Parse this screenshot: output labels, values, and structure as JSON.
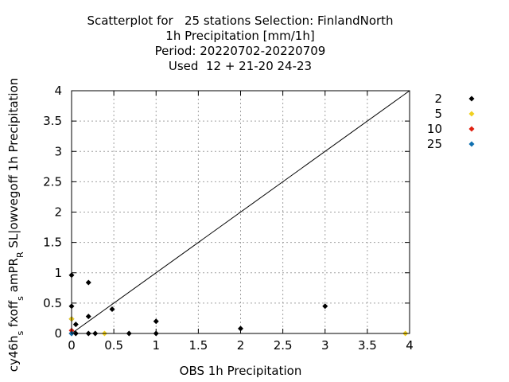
{
  "chart_data": {
    "type": "scatter",
    "title": [
      "Scatterplot for   25 stations Selection: FinlandNorth",
      "1h Precipitation [mm/1h]",
      "Period: 20220702-20220709",
      "Used  12 + 21-20 24-23"
    ],
    "xlabel": "OBS 1h Precipitation",
    "ylabel": "cy46h_s fxoff_s amPR_R SL|owvegoff 1h Precipitation",
    "xlim": [
      0,
      4
    ],
    "ylim": [
      0,
      4
    ],
    "x_ticks": [
      "0",
      "0.5",
      "1",
      "1.5",
      "2",
      "2.5",
      "3",
      "3.5",
      "4"
    ],
    "y_ticks": [
      "0",
      "0.5",
      "1",
      "1.5",
      "2",
      "2.5",
      "3",
      "3.5",
      "4"
    ],
    "grid": true,
    "diagonal": true,
    "legend_position": "outside-right",
    "series": [
      {
        "name": "2",
        "color": "#000000",
        "points": [
          [
            0.0,
            0.96
          ],
          [
            0.0,
            0.45
          ],
          [
            0.0,
            0.24
          ],
          [
            0.0,
            0.0
          ],
          [
            0.05,
            0.15
          ],
          [
            0.05,
            0.0
          ],
          [
            0.2,
            0.84
          ],
          [
            0.2,
            0.28
          ],
          [
            0.2,
            0.0
          ],
          [
            0.28,
            0.0
          ],
          [
            0.48,
            0.4
          ],
          [
            0.68,
            0.0
          ],
          [
            1.0,
            0.2
          ],
          [
            1.0,
            0.0
          ],
          [
            2.0,
            0.08
          ],
          [
            3.0,
            0.45
          ]
        ]
      },
      {
        "name": "5",
        "color": "#f0d020",
        "points": [
          [
            0.0,
            0.24
          ],
          [
            0.39,
            0.0
          ],
          [
            3.95,
            0.0
          ]
        ]
      },
      {
        "name": "10",
        "color": "#e02010",
        "points": [
          [
            0.0,
            0.05
          ]
        ]
      },
      {
        "name": "25",
        "color": "#1070b0",
        "points": [
          [
            0.0,
            0.0
          ]
        ]
      }
    ]
  }
}
